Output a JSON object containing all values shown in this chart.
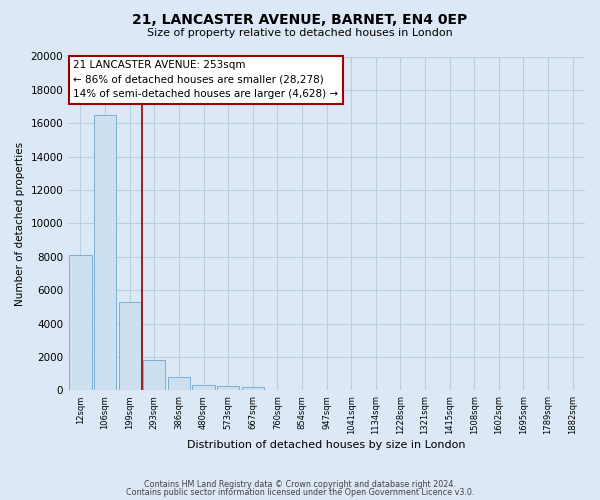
{
  "title": "21, LANCASTER AVENUE, BARNET, EN4 0EP",
  "subtitle": "Size of property relative to detached houses in London",
  "xlabel": "Distribution of detached houses by size in London",
  "ylabel": "Number of detached properties",
  "bar_labels": [
    "12sqm",
    "106sqm",
    "199sqm",
    "293sqm",
    "386sqm",
    "480sqm",
    "573sqm",
    "667sqm",
    "760sqm",
    "854sqm",
    "947sqm",
    "1041sqm",
    "1134sqm",
    "1228sqm",
    "1321sqm",
    "1415sqm",
    "1508sqm",
    "1602sqm",
    "1695sqm",
    "1789sqm",
    "1882sqm"
  ],
  "bar_values": [
    8100,
    16500,
    5300,
    1850,
    800,
    300,
    250,
    200,
    0,
    0,
    0,
    0,
    0,
    0,
    0,
    0,
    0,
    0,
    0,
    0,
    0
  ],
  "bar_face_color": "#cce0f0",
  "bar_edge_color": "#7ab0d4",
  "highlight_line_color": "#990000",
  "annotation_text_line1": "21 LANCASTER AVENUE: 253sqm",
  "annotation_text_line2": "← 86% of detached houses are smaller (28,278)",
  "annotation_text_line3": "14% of semi-detached houses are larger (4,628) →",
  "ylim": [
    0,
    20000
  ],
  "yticks": [
    0,
    2000,
    4000,
    6000,
    8000,
    10000,
    12000,
    14000,
    16000,
    18000,
    20000
  ],
  "background_color": "#dce8f5",
  "plot_background": "#dce8f5",
  "grid_color": "#b8cfe0",
  "footer_line1": "Contains HM Land Registry data © Crown copyright and database right 2024.",
  "footer_line2": "Contains public sector information licensed under the Open Government Licence v3.0."
}
